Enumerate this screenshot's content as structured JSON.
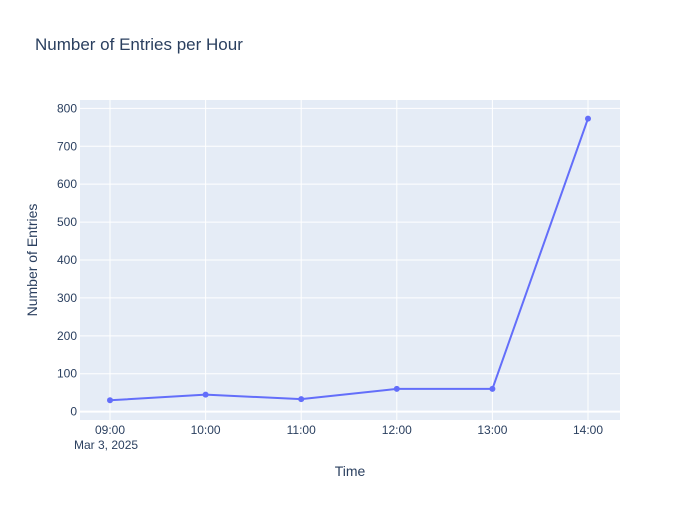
{
  "chart_data": {
    "type": "line",
    "title": "Number of Entries per Hour",
    "xlabel": "Time",
    "ylabel": "Number of Entries",
    "date_label": "Mar 3, 2025",
    "x": [
      "09:00",
      "10:00",
      "11:00",
      "12:00",
      "13:00",
      "14:00"
    ],
    "series": [
      {
        "values": [
          30,
          45,
          33,
          60,
          60,
          773
        ]
      }
    ],
    "y_ticks": [
      0,
      100,
      200,
      300,
      400,
      500,
      600,
      700,
      800
    ],
    "ylim": [
      -22,
      822
    ],
    "grid": true,
    "colors": {
      "plot_bg": "#e5ecf6",
      "grid": "#ffffff",
      "line": "#636efa",
      "text": "#2a3f5f"
    }
  }
}
